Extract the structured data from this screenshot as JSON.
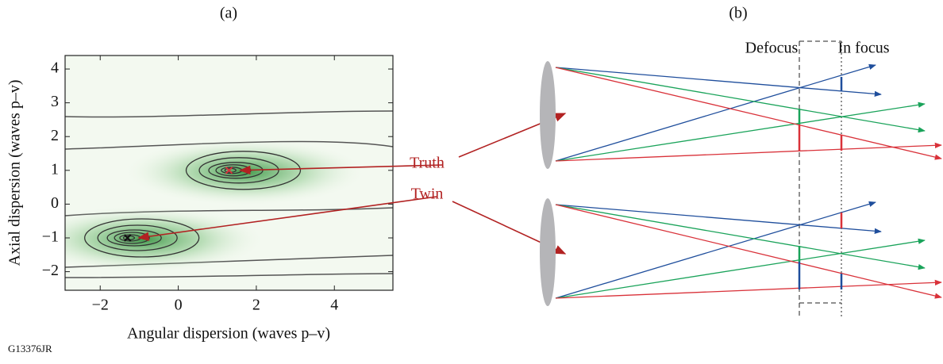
{
  "chart_data": {
    "type": "contour",
    "panel_label": "(a)",
    "xlabel": "Angular dispersion (waves p–v)",
    "ylabel": "Axial dispersion (waves p–v)",
    "xlim": [
      -2.9,
      5.5
    ],
    "ylim": [
      -2.55,
      4.4
    ],
    "xticks": [
      {
        "value": -2,
        "label": "−2"
      },
      0,
      2,
      4
    ],
    "yticks": [
      {
        "value": -2,
        "label": "−2"
      },
      {
        "value": -1,
        "label": "−1"
      },
      0,
      1,
      2,
      3,
      4
    ],
    "markers": {
      "x": [
        1.3,
        -1.3
      ],
      "y": [
        1.0,
        -1.0
      ]
    },
    "annotations": [
      "Truth",
      "Twin"
    ]
  },
  "diagram": {
    "panel_label": "(b)",
    "labels": [
      "Defocus",
      "In focus"
    ]
  },
  "figure_id": "G13376JR"
}
